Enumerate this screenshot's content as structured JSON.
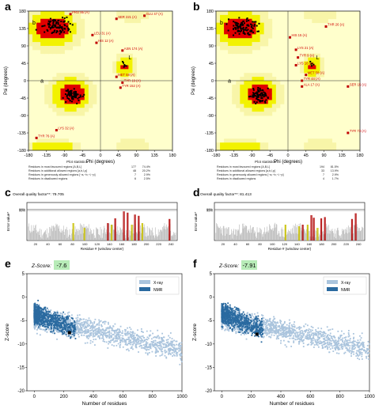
{
  "panels": {
    "a": {
      "label": "a"
    },
    "b": {
      "label": "b"
    },
    "c": {
      "label": "c"
    },
    "d": {
      "label": "d"
    },
    "e": {
      "label": "e"
    },
    "f": {
      "label": "f"
    }
  },
  "colors": {
    "core": "#e00000",
    "allowed": "#f2f200",
    "generous": "#f8f5a8",
    "background": "#ffffcc",
    "bar_gray": "#b8b8b8",
    "bar_yellow": "#c8c000",
    "bar_red": "#b00000",
    "xray": "#aac4dd",
    "nmr": "#2a6aa0",
    "zscore_box": "#b8ecb8"
  },
  "chart_data": [
    {
      "type": "scatter",
      "id": "ramachandran-a",
      "xlabel": "Phi (degrees)",
      "ylabel": "Psi (degrees)",
      "xlim": [
        -180,
        180
      ],
      "ylim": [
        -180,
        180
      ],
      "xticks": [
        "-180",
        "-135",
        "-90",
        "-45",
        "0",
        "45",
        "90",
        "135",
        "180"
      ],
      "yticks": [
        "180",
        "135",
        "90",
        "45",
        "0",
        "-45",
        "-90",
        "-135",
        "-180"
      ],
      "region_letters": [
        "b",
        "a",
        "L"
      ],
      "residue_labels": [
        {
          "text": "PRO 85 (A)",
          "phi": -75,
          "psi": 172
        },
        {
          "text": "GLU 47 (A)",
          "phi": 110,
          "psi": 168
        },
        {
          "text": "SER 221 (A)",
          "phi": 40,
          "psi": 160
        },
        {
          "text": "LEU 31 (A)",
          "phi": -20,
          "psi": 118
        },
        {
          "text": "HIS 12 (A)",
          "phi": -10,
          "psi": 98
        },
        {
          "text": "ASN 174 (A)",
          "phi": 55,
          "psi": 78
        },
        {
          "text": "MET 58 (A)",
          "phi": 40,
          "psi": 10
        },
        {
          "text": "TYR 19 (A)",
          "phi": 55,
          "psi": -5
        },
        {
          "text": "TYR 152 (A)",
          "phi": 50,
          "psi": -18
        },
        {
          "text": "LYS 32 (A)",
          "phi": -110,
          "psi": -128
        },
        {
          "text": "TYR 76 (A)",
          "phi": -160,
          "psi": -148
        }
      ],
      "stats_title": "Plot statistics",
      "stats": [
        {
          "label": "Residues in most favoured regions [A,B,L]",
          "count": "177",
          "pct": "74.4%"
        },
        {
          "label": "Residues in additional allowed regions [a,b,l,p]",
          "count": "48",
          "pct": "20.2%"
        },
        {
          "label": "Residues in generously allowed regions [~a,~b,~l,~p]",
          "count": "7",
          "pct": "2.9%"
        },
        {
          "label": "Residues in disallowed regions",
          "count": "6",
          "pct": "2.5%"
        }
      ]
    },
    {
      "type": "scatter",
      "id": "ramachandran-b",
      "xlabel": "Phi (degrees)",
      "ylabel": "Psi (degrees)",
      "xlim": [
        -180,
        180
      ],
      "ylim": [
        -180,
        180
      ],
      "xticks": [
        "-180",
        "-135",
        "-90",
        "-45",
        "0",
        "45",
        "90",
        "135",
        "180"
      ],
      "yticks": [
        "180",
        "135",
        "90",
        "45",
        "0",
        "-45",
        "-90",
        "-135",
        "-180"
      ],
      "region_letters": [
        "b",
        "a",
        "L"
      ],
      "residue_labels": [
        {
          "text": "THR 26 (A)",
          "phi": 95,
          "psi": 140
        },
        {
          "text": "HIS 15 (A)",
          "phi": 5,
          "psi": 112
        },
        {
          "text": "LYS 21 (A)",
          "phi": 20,
          "psi": 80
        },
        {
          "text": "TYR 9 (A)",
          "phi": 25,
          "psi": 60
        },
        {
          "text": "LYS 18 (A)",
          "phi": 20,
          "psi": 40
        },
        {
          "text": "MET 58 (A)",
          "phi": 45,
          "psi": 15
        },
        {
          "text": "TYR 44 (A)",
          "phi": 35,
          "psi": 0
        },
        {
          "text": "ALA 17 (A)",
          "phi": 35,
          "psi": -15
        },
        {
          "text": "SER 15 (A)",
          "phi": 150,
          "psi": -15
        },
        {
          "text": "TYR 73 (A)",
          "phi": 150,
          "psi": -135
        }
      ],
      "stats_title": "Plot statistics",
      "stats": [
        {
          "label": "Residues in most favoured regions [A,B,L]",
          "count": "194",
          "pct": "81.5%"
        },
        {
          "label": "Residues in additional allowed regions [a,b,l,p]",
          "count": "33",
          "pct": "13.9%"
        },
        {
          "label": "Residues in generously allowed regions [~a,~b,~l,~p]",
          "count": "7",
          "pct": "2.9%"
        },
        {
          "label": "Residues in disallowed regions",
          "count": "4",
          "pct": "1.7%"
        }
      ]
    },
    {
      "type": "bar",
      "id": "errat-c",
      "title": "Overall quality factor**: 79.705",
      "xlabel": "Residue # (window center)",
      "ylabel": "Error value*",
      "xticks": [
        20,
        40,
        60,
        80,
        100,
        120,
        140,
        160,
        180,
        200,
        220,
        240
      ],
      "xlim": [
        6,
        250
      ],
      "ylim": [
        0,
        120
      ],
      "threshold_labels": [
        "99%",
        "95%"
      ],
      "thresholds": [
        99,
        95
      ],
      "red_bars": [
        {
          "x": 136,
          "v": 55
        },
        {
          "x": 148,
          "v": 70
        },
        {
          "x": 162,
          "v": 92
        },
        {
          "x": 168,
          "v": 88
        },
        {
          "x": 180,
          "v": 82
        },
        {
          "x": 186,
          "v": 78
        },
        {
          "x": 236,
          "v": 68
        }
      ],
      "yellow_bars": [
        {
          "x": 80,
          "v": 55
        },
        {
          "x": 98,
          "v": 40
        },
        {
          "x": 142,
          "v": 50
        },
        {
          "x": 175,
          "v": 50
        },
        {
          "x": 192,
          "v": 55
        }
      ],
      "seed": 11
    },
    {
      "type": "bar",
      "id": "errat-d",
      "title": "Overall quality factor**: 81.413",
      "xlabel": "Residue # (window center)",
      "ylabel": "Error value*",
      "xticks": [
        20,
        40,
        60,
        80,
        100,
        120,
        140,
        160,
        180,
        200,
        220,
        240
      ],
      "xlim": [
        6,
        250
      ],
      "ylim": [
        0,
        120
      ],
      "threshold_labels": [
        "99%",
        "95%"
      ],
      "thresholds": [
        99,
        95
      ],
      "red_bars": [
        {
          "x": 148,
          "v": 50
        },
        {
          "x": 162,
          "v": 80
        },
        {
          "x": 166,
          "v": 72
        },
        {
          "x": 178,
          "v": 70
        },
        {
          "x": 184,
          "v": 74
        },
        {
          "x": 228,
          "v": 68
        },
        {
          "x": 234,
          "v": 86
        }
      ],
      "yellow_bars": [
        {
          "x": 120,
          "v": 50
        },
        {
          "x": 142,
          "v": 45
        },
        {
          "x": 156,
          "v": 50
        },
        {
          "x": 172,
          "v": 40
        }
      ],
      "seed": 23
    },
    {
      "type": "scatter",
      "id": "zscore-e",
      "zscore_label": "Z-Score:",
      "zscore_value": "-7.6",
      "z": -7.6,
      "n_residues": 238,
      "xlabel": "Number of residues",
      "ylabel": "Z-score",
      "xlim": [
        -50,
        1000
      ],
      "ylim": [
        -20,
        5
      ],
      "xticks": [
        0,
        200,
        400,
        600,
        800,
        1000
      ],
      "yticks": [
        5,
        0,
        -5,
        -10,
        -15,
        -20
      ],
      "legend": [
        "X-ray",
        "NMR"
      ],
      "legend_position": "top-right"
    },
    {
      "type": "scatter",
      "id": "zscore-f",
      "zscore_label": "Z-Score:",
      "zscore_value": "-7.91",
      "z": -7.91,
      "n_residues": 238,
      "xlabel": "Number of residues",
      "ylabel": "Z-score",
      "xlim": [
        -50,
        1000
      ],
      "ylim": [
        -20,
        5
      ],
      "xticks": [
        0,
        200,
        400,
        600,
        800,
        1000
      ],
      "yticks": [
        5,
        0,
        -5,
        -10,
        -15,
        -20
      ],
      "legend": [
        "X-ray",
        "NMR"
      ],
      "legend_position": "top-right"
    }
  ]
}
